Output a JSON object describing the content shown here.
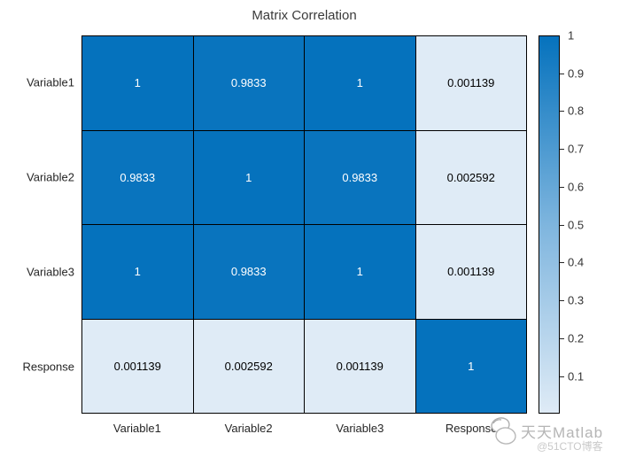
{
  "title": "Matrix Correlation",
  "chart_data": {
    "type": "heatmap",
    "title": "Matrix Correlation",
    "rows": [
      "Variable1",
      "Variable2",
      "Variable3",
      "Response"
    ],
    "columns": [
      "Variable1",
      "Variable2",
      "Variable3",
      "Response"
    ],
    "values": [
      [
        1,
        0.9833,
        1,
        0.001139
      ],
      [
        0.9833,
        1,
        0.9833,
        0.002592
      ],
      [
        1,
        0.9833,
        1,
        0.001139
      ],
      [
        0.001139,
        0.002592,
        0.001139,
        1
      ]
    ],
    "cell_labels": [
      [
        "1",
        "0.9833",
        "1",
        "0.001139"
      ],
      [
        "0.9833",
        "1",
        "0.9833",
        "0.002592"
      ],
      [
        "1",
        "0.9833",
        "1",
        "0.001139"
      ],
      [
        "0.001139",
        "0.002592",
        "0.001139",
        "1"
      ]
    ],
    "color_scale": {
      "min_value": 0.001139,
      "max_value": 1,
      "low_color": "#dfebf6",
      "mid_color": "#7eb5de",
      "high_color": "#0572bd"
    },
    "grid_color": "#000000",
    "legend_position": "right",
    "colorbar_ticks": [
      {
        "value": 1,
        "label": "1"
      },
      {
        "value": 0.9,
        "label": "0.9"
      },
      {
        "value": 0.8,
        "label": "0.8"
      },
      {
        "value": 0.7,
        "label": "0.7"
      },
      {
        "value": 0.6,
        "label": "0.6"
      },
      {
        "value": 0.5,
        "label": "0.5"
      },
      {
        "value": 0.4,
        "label": "0.4"
      },
      {
        "value": 0.3,
        "label": "0.3"
      },
      {
        "value": 0.2,
        "label": "0.2"
      },
      {
        "value": 0.1,
        "label": "0.1"
      }
    ]
  },
  "watermark": {
    "brand": "天天Matlab",
    "handle": "@51CTO博客",
    "brand_color": "#b5b5b5",
    "handle_color": "#c9c9c9"
  }
}
